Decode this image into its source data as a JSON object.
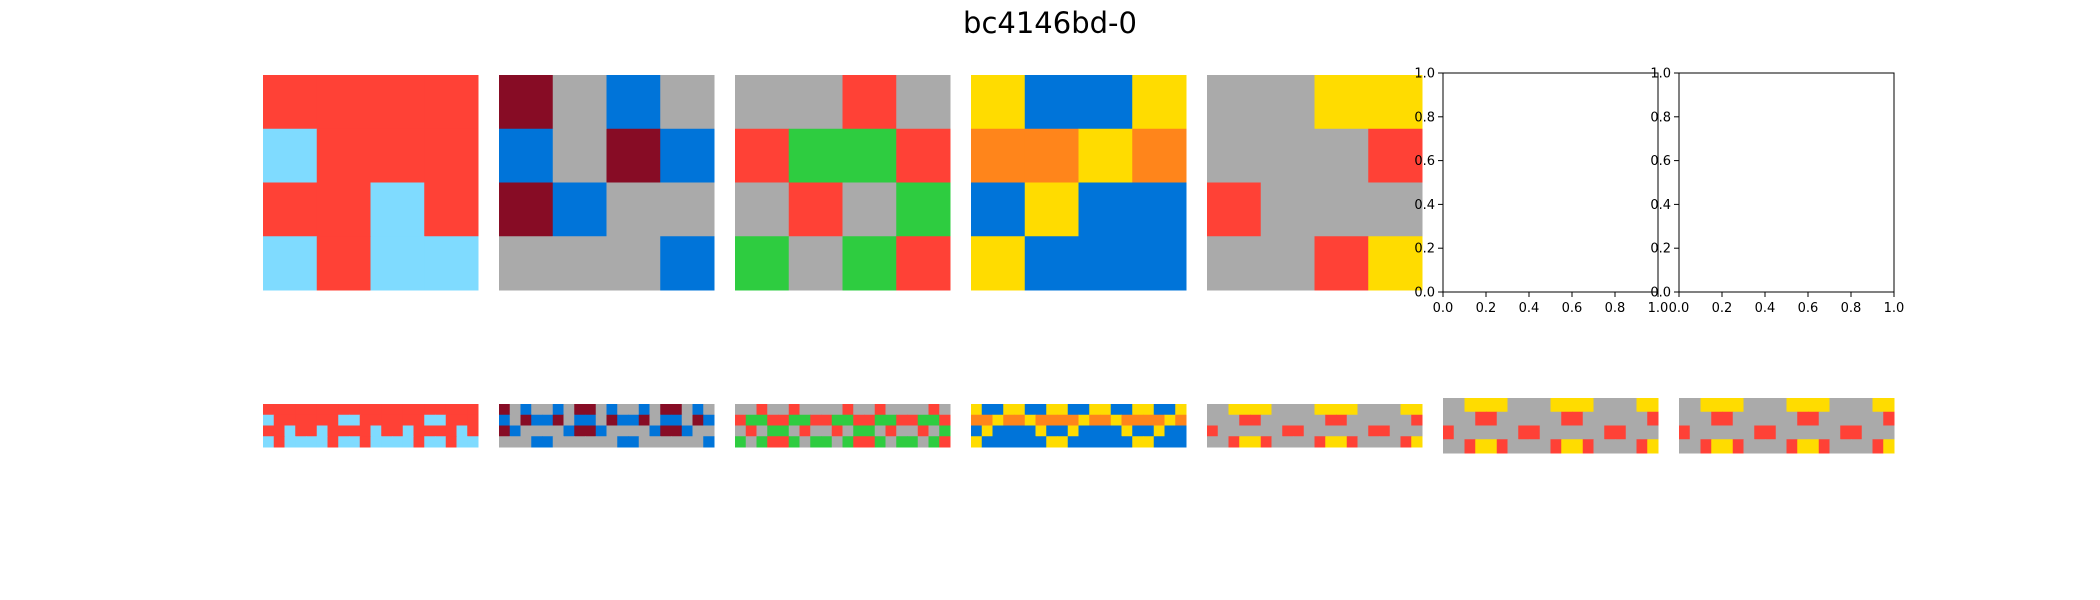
{
  "title": "bc4146bd-0",
  "palette": {
    "0": "#000000",
    "1": "#0074D9",
    "2": "#FF4136",
    "3": "#2ECC40",
    "4": "#FFDC00",
    "5": "#AAAAAA",
    "6": "#F012BE",
    "7": "#FF851B",
    "8": "#7FDBFF",
    "9": "#870C25"
  },
  "chart_data": {
    "type": "heatmap",
    "examples": [
      {
        "input": [
          [
            2,
            2,
            2,
            2
          ],
          [
            8,
            2,
            2,
            2
          ],
          [
            2,
            2,
            8,
            2
          ],
          [
            8,
            2,
            8,
            8
          ]
        ],
        "output": [
          [
            2,
            2,
            2,
            2,
            2,
            2,
            2,
            2,
            2,
            2,
            2,
            2,
            2,
            2,
            2,
            2,
            2,
            2,
            2,
            2
          ],
          [
            8,
            2,
            2,
            2,
            2,
            2,
            2,
            8,
            8,
            2,
            2,
            2,
            2,
            2,
            2,
            8,
            8,
            2,
            2,
            2
          ],
          [
            2,
            2,
            8,
            2,
            2,
            8,
            2,
            2,
            2,
            2,
            8,
            2,
            2,
            8,
            2,
            2,
            2,
            2,
            8,
            2
          ],
          [
            8,
            2,
            8,
            8,
            8,
            8,
            2,
            8,
            8,
            2,
            8,
            8,
            8,
            8,
            2,
            8,
            8,
            2,
            8,
            8
          ]
        ]
      },
      {
        "input": [
          [
            9,
            5,
            1,
            5
          ],
          [
            1,
            5,
            9,
            1
          ],
          [
            9,
            1,
            5,
            5
          ],
          [
            5,
            5,
            5,
            1
          ]
        ],
        "output": [
          [
            9,
            5,
            1,
            5,
            5,
            1,
            5,
            9,
            9,
            5,
            1,
            5,
            5,
            1,
            5,
            9,
            9,
            5,
            1,
            5
          ],
          [
            1,
            5,
            9,
            1,
            1,
            9,
            5,
            1,
            1,
            5,
            9,
            1,
            1,
            9,
            5,
            1,
            1,
            5,
            9,
            1
          ],
          [
            9,
            1,
            5,
            5,
            5,
            5,
            1,
            9,
            9,
            1,
            5,
            5,
            5,
            5,
            1,
            9,
            9,
            1,
            5,
            5
          ],
          [
            5,
            5,
            5,
            1,
            1,
            5,
            5,
            5,
            5,
            5,
            5,
            1,
            1,
            5,
            5,
            5,
            5,
            5,
            5,
            1
          ]
        ]
      },
      {
        "input": [
          [
            5,
            5,
            2,
            5
          ],
          [
            2,
            3,
            3,
            2
          ],
          [
            5,
            2,
            5,
            3
          ],
          [
            3,
            5,
            3,
            2
          ]
        ],
        "output": [
          [
            5,
            5,
            2,
            5,
            5,
            2,
            5,
            5,
            5,
            5,
            2,
            5,
            5,
            2,
            5,
            5,
            5,
            5,
            2,
            5
          ],
          [
            2,
            3,
            3,
            2,
            2,
            3,
            3,
            2,
            2,
            3,
            3,
            2,
            2,
            3,
            3,
            2,
            2,
            3,
            3,
            2
          ],
          [
            5,
            2,
            5,
            3,
            3,
            5,
            2,
            5,
            5,
            2,
            5,
            3,
            3,
            5,
            2,
            5,
            5,
            2,
            5,
            3
          ],
          [
            3,
            5,
            3,
            2,
            2,
            3,
            5,
            3,
            3,
            5,
            3,
            2,
            2,
            3,
            5,
            3,
            3,
            5,
            3,
            2
          ]
        ]
      },
      {
        "input": [
          [
            4,
            1,
            1,
            4
          ],
          [
            7,
            7,
            4,
            7
          ],
          [
            1,
            4,
            1,
            1
          ],
          [
            4,
            1,
            1,
            1
          ]
        ],
        "output": [
          [
            4,
            1,
            1,
            4,
            4,
            1,
            1,
            4,
            4,
            1,
            1,
            4,
            4,
            1,
            1,
            4,
            4,
            1,
            1,
            4
          ],
          [
            7,
            7,
            4,
            7,
            7,
            4,
            7,
            7,
            7,
            7,
            4,
            7,
            7,
            4,
            7,
            7,
            7,
            7,
            4,
            7
          ],
          [
            1,
            4,
            1,
            1,
            1,
            1,
            4,
            1,
            1,
            4,
            1,
            1,
            1,
            1,
            4,
            1,
            1,
            4,
            1,
            1
          ],
          [
            4,
            1,
            1,
            1,
            1,
            1,
            1,
            4,
            4,
            1,
            1,
            1,
            1,
            1,
            1,
            4,
            4,
            1,
            1,
            1
          ]
        ]
      },
      {
        "input": [
          [
            5,
            5,
            4,
            4
          ],
          [
            5,
            5,
            5,
            2
          ],
          [
            2,
            5,
            5,
            5
          ],
          [
            5,
            5,
            2,
            4
          ]
        ],
        "output": [
          [
            5,
            5,
            4,
            4,
            4,
            4,
            5,
            5,
            5,
            5,
            4,
            4,
            4,
            4,
            5,
            5,
            5,
            5,
            4,
            4
          ],
          [
            5,
            5,
            5,
            2,
            2,
            5,
            5,
            5,
            5,
            5,
            5,
            2,
            2,
            5,
            5,
            5,
            5,
            5,
            5,
            2
          ],
          [
            2,
            5,
            5,
            5,
            5,
            5,
            5,
            2,
            2,
            5,
            5,
            5,
            5,
            5,
            5,
            2,
            2,
            5,
            5,
            5
          ],
          [
            5,
            5,
            2,
            4,
            4,
            2,
            5,
            5,
            5,
            5,
            2,
            4,
            4,
            2,
            5,
            5,
            5,
            5,
            2,
            4
          ]
        ]
      },
      {
        "input": null,
        "output": [
          [
            5,
            5,
            4,
            4,
            4,
            4,
            5,
            5,
            5,
            5,
            4,
            4,
            4,
            4,
            5,
            5,
            5,
            5,
            4,
            4
          ],
          [
            5,
            5,
            5,
            2,
            2,
            5,
            5,
            5,
            5,
            5,
            5,
            2,
            2,
            5,
            5,
            5,
            5,
            5,
            5,
            2
          ],
          [
            2,
            5,
            5,
            5,
            5,
            5,
            5,
            2,
            2,
            5,
            5,
            5,
            5,
            5,
            5,
            2,
            2,
            5,
            5,
            5
          ],
          [
            5,
            5,
            2,
            4,
            4,
            2,
            5,
            5,
            5,
            5,
            2,
            4,
            4,
            2,
            5,
            5,
            5,
            5,
            2,
            4
          ]
        ]
      },
      {
        "input": null,
        "output": [
          [
            5,
            5,
            4,
            4,
            4,
            4,
            5,
            5,
            5,
            5,
            4,
            4,
            4,
            4,
            5,
            5,
            5,
            5,
            4,
            4
          ],
          [
            5,
            5,
            5,
            2,
            2,
            5,
            5,
            5,
            5,
            5,
            5,
            2,
            2,
            5,
            5,
            5,
            5,
            5,
            5,
            2
          ],
          [
            2,
            5,
            5,
            5,
            5,
            5,
            5,
            2,
            2,
            5,
            5,
            5,
            5,
            5,
            5,
            2,
            2,
            5,
            5,
            5
          ],
          [
            5,
            5,
            2,
            4,
            4,
            2,
            5,
            5,
            5,
            5,
            2,
            4,
            4,
            2,
            5,
            5,
            5,
            5,
            2,
            4
          ]
        ]
      }
    ],
    "empty_axes": {
      "xlim": [
        0.0,
        1.0
      ],
      "ylim": [
        0.0,
        1.0
      ],
      "xticks": [
        "0.0",
        "0.2",
        "0.4",
        "0.6",
        "0.8",
        "1.0"
      ],
      "yticks": [
        "0.0",
        "0.2",
        "0.4",
        "0.6",
        "0.8",
        "1.0"
      ]
    }
  }
}
